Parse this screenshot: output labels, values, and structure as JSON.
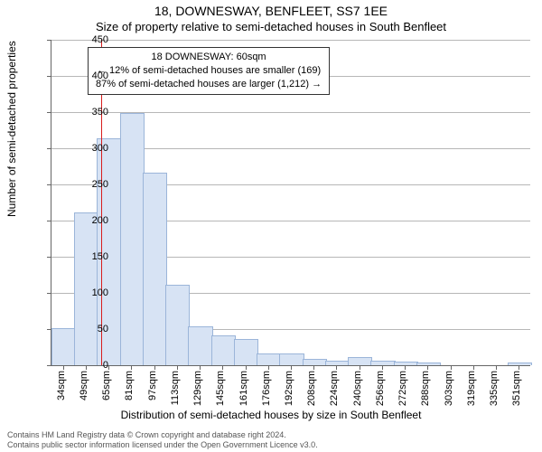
{
  "titles": {
    "main": "18, DOWNESWAY, BENFLEET, SS7 1EE",
    "sub": "Size of property relative to semi-detached houses in South Benfleet"
  },
  "chart": {
    "type": "histogram",
    "y_label": "Number of semi-detached properties",
    "x_label": "Distribution of semi-detached houses by size in South Benfleet",
    "ylim": [
      0,
      450
    ],
    "ytick_step": 50,
    "grid_color": "#b7b7b7",
    "background_color": "#ffffff",
    "bar_fill": "#d7e3f4",
    "bar_stroke": "#9bb5d9",
    "bar_width_ratio": 1.0,
    "categories": [
      "34sqm",
      "49sqm",
      "65sqm",
      "81sqm",
      "97sqm",
      "113sqm",
      "129sqm",
      "145sqm",
      "161sqm",
      "176sqm",
      "192sqm",
      "208sqm",
      "224sqm",
      "240sqm",
      "256sqm",
      "272sqm",
      "288sqm",
      "303sqm",
      "319sqm",
      "335sqm",
      "351sqm"
    ],
    "values": [
      50,
      210,
      312,
      348,
      265,
      110,
      53,
      40,
      35,
      15,
      15,
      8,
      5,
      10,
      5,
      4,
      2,
      0,
      0,
      0,
      2
    ],
    "label_fontsize": 12,
    "tick_fontsize": 11,
    "title_fontsize": 14
  },
  "marker": {
    "x_value": "60sqm",
    "line_color": "#d81e1e",
    "callout": {
      "line1": "18 DOWNESWAY: 60sqm",
      "line2": "← 12% of semi-detached houses are smaller (169)",
      "line3": "87% of semi-detached houses are larger (1,212) →",
      "border_color": "#333333",
      "bg_color": "#ffffff"
    }
  },
  "attribution": {
    "line1": "Contains HM Land Registry data © Crown copyright and database right 2024.",
    "line2": "Contains public sector information licensed under the Open Government Licence v3.0."
  }
}
